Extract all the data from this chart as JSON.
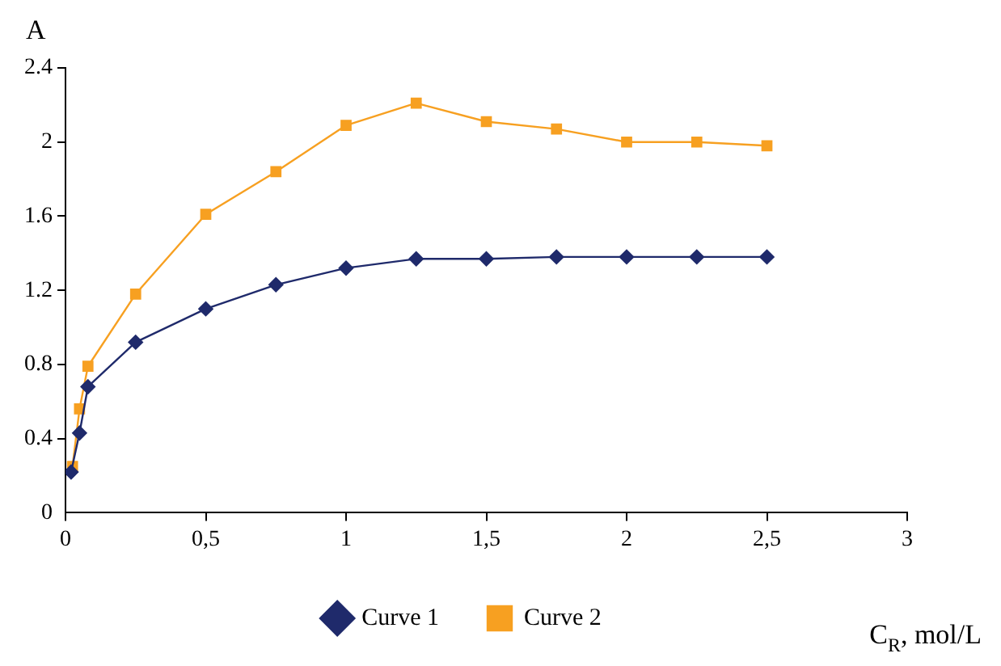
{
  "chart_data": {
    "type": "line",
    "xlabel": "C$_{R}$, mol/L",
    "ylabel": "A",
    "xlim": [
      0,
      3
    ],
    "xticks": [
      0,
      {
        "value": 0.5,
        "label": "0,5"
      },
      1,
      {
        "value": 1.5,
        "label": "1,5"
      },
      2,
      {
        "value": 2.5,
        "label": "2,5"
      },
      3
    ],
    "ylim": [
      0,
      2.4
    ],
    "yticks": [
      0,
      0.4,
      0.8,
      1.2,
      1.6,
      2,
      2.4
    ],
    "grid": false,
    "legend": "bottom",
    "line_style": "solid",
    "series": [
      {
        "name": "Curve 1",
        "color": "#1f2a6b",
        "marker": "diamond",
        "x": [
          0.02,
          0.05,
          0.08,
          0.25,
          0.5,
          0.75,
          1.0,
          1.25,
          1.5,
          1.75,
          2.0,
          2.25,
          2.5
        ],
        "values": [
          0.22,
          0.43,
          0.68,
          0.92,
          1.1,
          1.23,
          1.32,
          1.37,
          1.37,
          1.38,
          1.38,
          1.38,
          1.38
        ]
      },
      {
        "name": "Curve 2",
        "color": "#f7a021",
        "marker": "square",
        "x": [
          0.025,
          0.05,
          0.08,
          0.25,
          0.5,
          0.75,
          1.0,
          1.25,
          1.5,
          1.75,
          2.0,
          2.25,
          2.5
        ],
        "values": [
          0.25,
          0.56,
          0.79,
          1.18,
          1.61,
          1.84,
          2.09,
          2.21,
          2.11,
          2.07,
          2.0,
          2.0,
          1.98
        ]
      }
    ]
  }
}
